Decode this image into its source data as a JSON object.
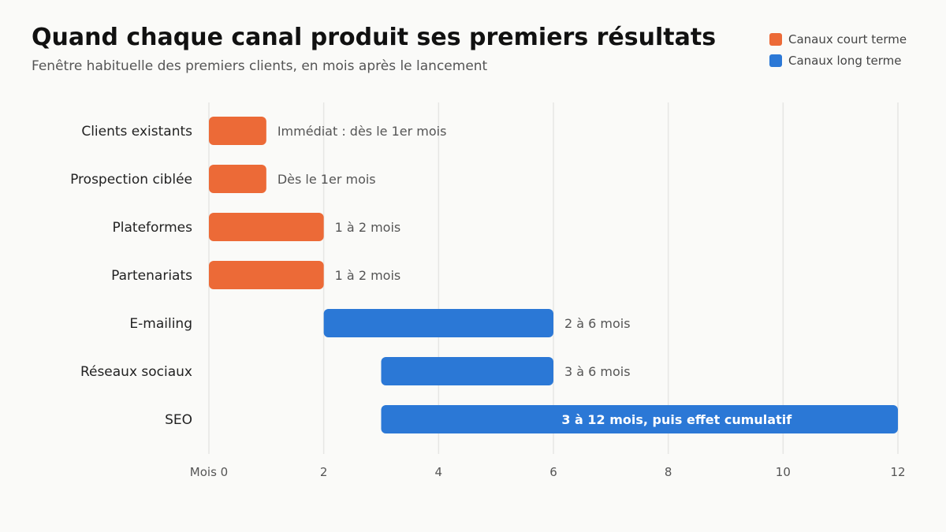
{
  "chart_data": {
    "type": "bar",
    "title": "Quand chaque canal produit ses premiers résultats",
    "subtitle": "Fenêtre habituelle des premiers clients, en mois après le lancement",
    "xlabel": "",
    "ylabel": "",
    "xlim": [
      0,
      12
    ],
    "x_ticks": [
      {
        "value": 0,
        "label": "Mois 0"
      },
      {
        "value": 2,
        "label": "2"
      },
      {
        "value": 4,
        "label": "4"
      },
      {
        "value": 6,
        "label": "6"
      },
      {
        "value": 8,
        "label": "8"
      },
      {
        "value": 10,
        "label": "10"
      },
      {
        "value": 12,
        "label": "12"
      }
    ],
    "grid": "vertical",
    "legend_position": "top-right",
    "legend": [
      {
        "name": "Canaux court terme",
        "color": "#ec6a37"
      },
      {
        "name": "Canaux long terme",
        "color": "#2b78d6"
      }
    ],
    "series": [
      {
        "category": "Clients existants",
        "start": 0,
        "end": 1,
        "group": "Canaux court terme",
        "label": "Immédiat : dès le 1er mois"
      },
      {
        "category": "Prospection ciblée",
        "start": 0,
        "end": 1,
        "group": "Canaux court terme",
        "label": "Dès le 1er mois"
      },
      {
        "category": "Plateformes",
        "start": 0,
        "end": 2,
        "group": "Canaux court terme",
        "label": "1 à 2 mois"
      },
      {
        "category": "Partenariats",
        "start": 0,
        "end": 2,
        "group": "Canaux court terme",
        "label": "1 à 2 mois"
      },
      {
        "category": "E-mailing",
        "start": 2,
        "end": 6,
        "group": "Canaux long terme",
        "label": "2 à 6 mois"
      },
      {
        "category": "Réseaux sociaux",
        "start": 3,
        "end": 6,
        "group": "Canaux long terme",
        "label": "3 à 6 mois"
      },
      {
        "category": "SEO",
        "start": 3,
        "end": 12,
        "group": "Canaux long terme",
        "label": "3 à 12 mois, puis effet cumulatif",
        "label_inside": true
      }
    ]
  }
}
